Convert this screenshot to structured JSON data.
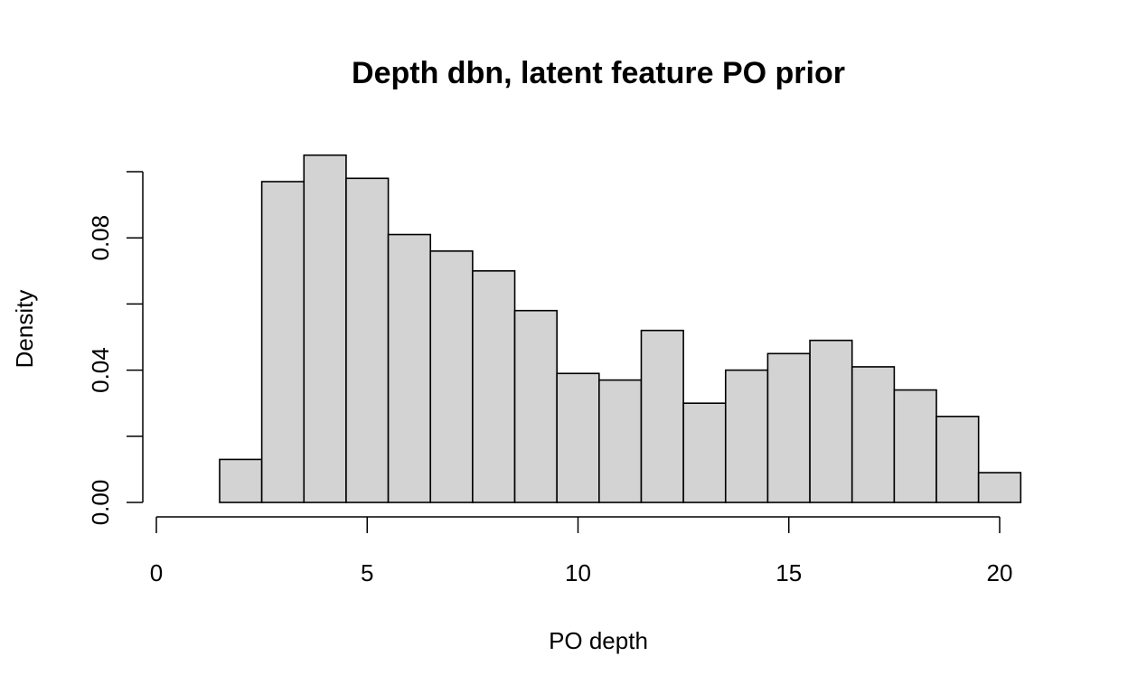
{
  "chart_data": {
    "type": "bar",
    "title": "Depth dbn, latent feature PO prior",
    "xlabel": "PO depth",
    "ylabel": "Density",
    "bin_width": 1,
    "x": [
      1,
      2,
      3,
      4,
      5,
      6,
      7,
      8,
      9,
      10,
      11,
      12,
      13,
      14,
      15,
      16,
      17,
      18,
      19,
      20
    ],
    "values": [
      0.0,
      0.013,
      0.097,
      0.105,
      0.098,
      0.081,
      0.076,
      0.07,
      0.058,
      0.039,
      0.037,
      0.052,
      0.03,
      0.04,
      0.045,
      0.049,
      0.041,
      0.034,
      0.026,
      0.009
    ],
    "xlim": [
      0,
      20
    ],
    "ylim": [
      0,
      0.1
    ],
    "xticks": [
      0,
      5,
      10,
      15,
      20
    ],
    "xtick_labels": [
      "0",
      "5",
      "10",
      "15",
      "20"
    ],
    "yticks": [
      0,
      0.02,
      0.04,
      0.06,
      0.08,
      0.1
    ],
    "ytick_labels": [
      "0.00",
      "",
      "0.04",
      "",
      "0.08",
      ""
    ],
    "bar_color": "#d3d3d3",
    "grid": false,
    "legend": "none"
  }
}
